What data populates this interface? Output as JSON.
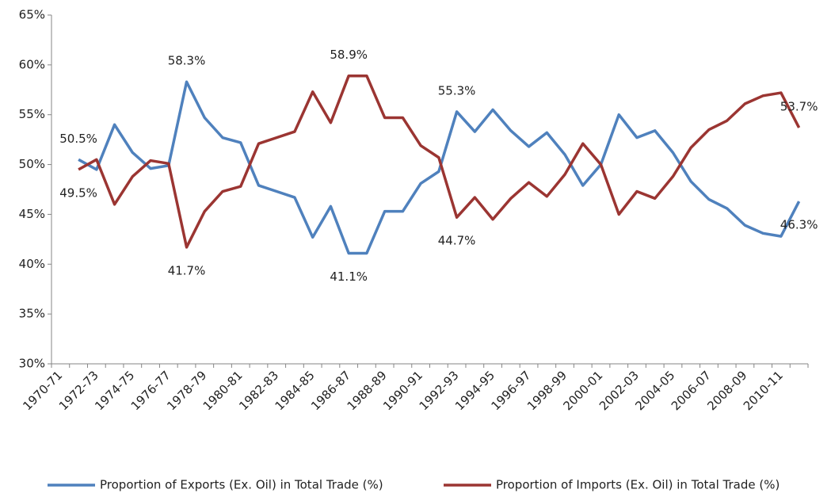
{
  "chart_data": {
    "type": "line",
    "categories": [
      "1970-71",
      null,
      "1972-73",
      null,
      "1974-75",
      null,
      "1976-77",
      null,
      "1978-79",
      null,
      "1980-81",
      null,
      "1982-83",
      null,
      "1984-85",
      null,
      "1986-87",
      null,
      "1988-89",
      null,
      "1990-91",
      null,
      "1992-93",
      null,
      "1994-95",
      null,
      "1996-97",
      null,
      "1998-99",
      null,
      "2000-01",
      null,
      "2002-03",
      null,
      "2004-05",
      null,
      "2006-07",
      null,
      "2008-09",
      null,
      "2010-11",
      null
    ],
    "series": [
      {
        "name": "Proportion of Exports (Ex. Oil) in Total Trade (%)",
        "color": "#4f81bd",
        "values": [
          null,
          50.5,
          49.5,
          54.0,
          51.2,
          49.6,
          49.9,
          58.3,
          54.7,
          52.7,
          52.2,
          47.9,
          47.3,
          46.7,
          42.7,
          45.8,
          41.1,
          41.1,
          45.3,
          45.3,
          48.1,
          49.3,
          55.3,
          53.3,
          55.5,
          53.4,
          51.8,
          53.2,
          51.0,
          47.9,
          50.0,
          55.0,
          52.7,
          53.4,
          51.2,
          48.3,
          46.5,
          45.6,
          43.9,
          43.1,
          42.8,
          46.3
        ],
        "value_labels": [
          null,
          "50.5%",
          null,
          null,
          null,
          null,
          null,
          "58.3%",
          null,
          null,
          null,
          null,
          null,
          null,
          null,
          null,
          "41.1%",
          null,
          null,
          null,
          null,
          null,
          "55.3%",
          null,
          null,
          null,
          null,
          null,
          null,
          null,
          null,
          null,
          null,
          null,
          null,
          null,
          null,
          null,
          null,
          null,
          null,
          "46.3%"
        ]
      },
      {
        "name": "Proportion of Imports (Ex. Oil) in Total Trade (%)",
        "color": "#9b3532",
        "values": [
          null,
          49.5,
          50.5,
          46.0,
          48.8,
          50.4,
          50.1,
          41.7,
          45.3,
          47.3,
          47.8,
          52.1,
          52.7,
          53.3,
          57.3,
          54.2,
          58.9,
          58.9,
          54.7,
          54.7,
          51.9,
          50.7,
          44.7,
          46.7,
          44.5,
          46.6,
          48.2,
          46.8,
          49.0,
          52.1,
          50.0,
          45.0,
          47.3,
          46.6,
          48.8,
          51.7,
          53.5,
          54.4,
          56.1,
          56.9,
          57.2,
          53.7
        ],
        "value_labels": [
          null,
          "49.5%",
          null,
          null,
          null,
          null,
          null,
          "41.7%",
          null,
          null,
          null,
          null,
          null,
          null,
          null,
          null,
          "58.9%",
          null,
          null,
          null,
          null,
          null,
          "44.7%",
          null,
          null,
          null,
          null,
          null,
          null,
          null,
          null,
          null,
          null,
          null,
          null,
          null,
          null,
          null,
          null,
          null,
          null,
          "53.7%"
        ]
      }
    ],
    "ylim": [
      30,
      65
    ],
    "yticks": [
      {
        "value": 30,
        "label": "30%"
      },
      {
        "value": 35,
        "label": "35%"
      },
      {
        "value": 40,
        "label": "40%"
      },
      {
        "value": 45,
        "label": "45%"
      },
      {
        "value": 50,
        "label": "50%"
      },
      {
        "value": 55,
        "label": "55%"
      },
      {
        "value": 60,
        "label": "60%"
      },
      {
        "value": 65,
        "label": "65%"
      }
    ],
    "grid": false,
    "legend": "bottom"
  }
}
